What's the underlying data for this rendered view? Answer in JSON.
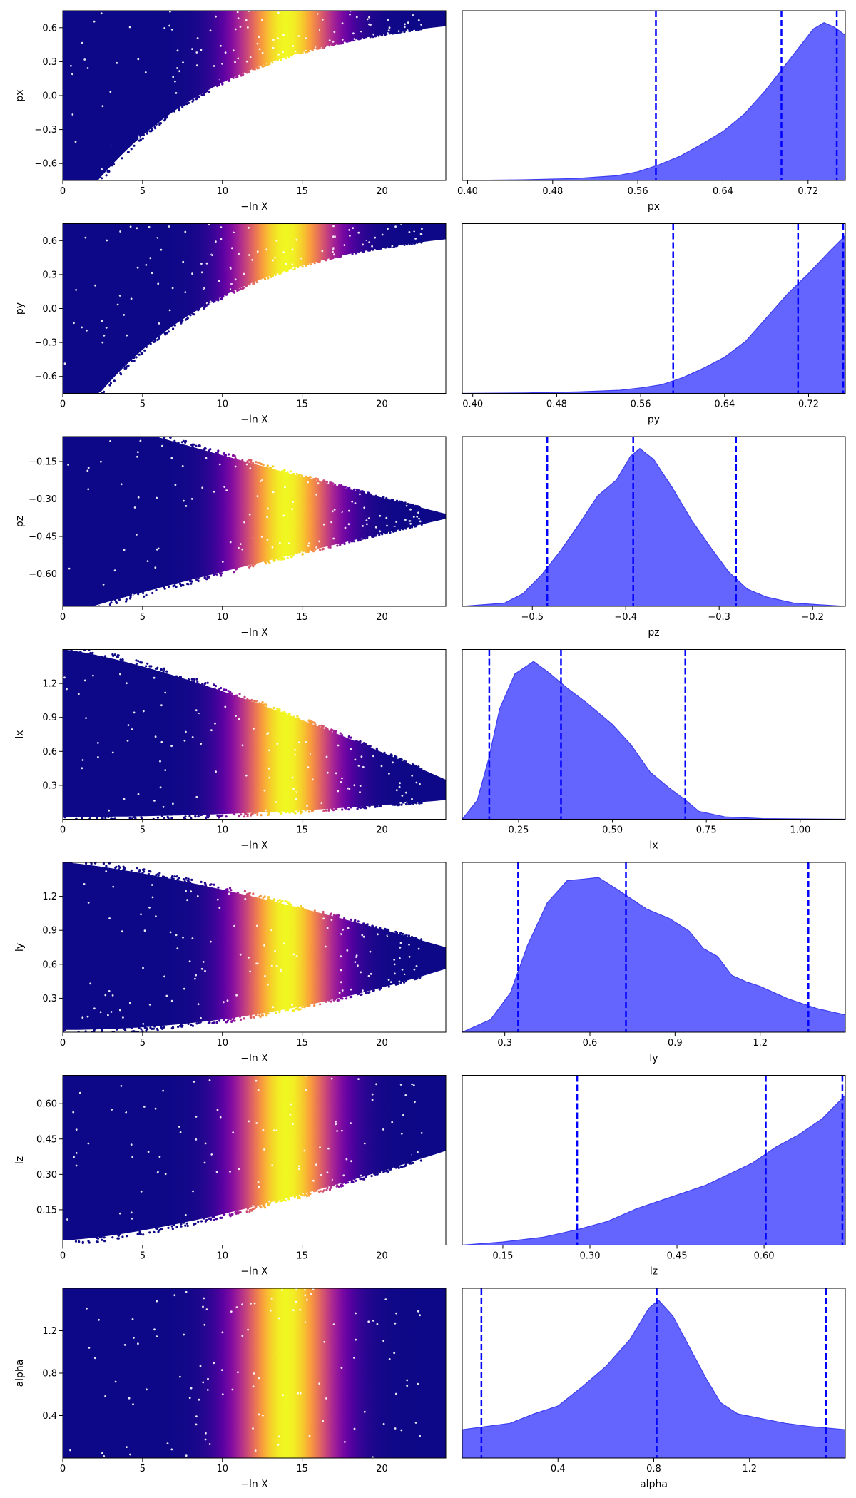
{
  "chart_data": {
    "type": "trace-plot",
    "x_axis_label": "−ln X",
    "trace_x_range": [
      0,
      24
    ],
    "trace_x_ticks": [
      0,
      5,
      10,
      15,
      20
    ],
    "peak_importance_at": 14,
    "colormap": [
      "#0d0887",
      "#6a00a8",
      "#b12a90",
      "#e16462",
      "#fca636",
      "#f0f921"
    ],
    "posterior_fill": "#6464ff",
    "posterior_edge": "#3c3cf0",
    "quantile_color": "#0000ff",
    "parameters": [
      {
        "name": "px",
        "trace_ylim": [
          -0.75,
          0.75
        ],
        "trace_yticks": [
          "-0.6",
          "-0.3",
          "0.0",
          "0.3",
          "0.6"
        ],
        "trace_shape": {
          "type": "lower-bound",
          "low": -0.75,
          "high": 0.75,
          "start": 0.75,
          "floor": -0.75,
          "rise": 2.2,
          "k": 0.11
        },
        "posterior_xlim": [
          0.395,
          0.755
        ],
        "posterior_xticks": [
          "0.40",
          "0.48",
          "0.56",
          "0.64",
          "0.72"
        ],
        "quantiles": [
          0.577,
          0.695,
          0.747
        ],
        "posterior_density": [
          [
            0.395,
            0.0
          ],
          [
            0.45,
            0.004
          ],
          [
            0.5,
            0.012
          ],
          [
            0.54,
            0.03
          ],
          [
            0.56,
            0.055
          ],
          [
            0.58,
            0.1
          ],
          [
            0.6,
            0.155
          ],
          [
            0.62,
            0.23
          ],
          [
            0.64,
            0.31
          ],
          [
            0.66,
            0.42
          ],
          [
            0.68,
            0.57
          ],
          [
            0.695,
            0.7
          ],
          [
            0.71,
            0.83
          ],
          [
            0.725,
            0.96
          ],
          [
            0.735,
            1.0
          ],
          [
            0.745,
            0.97
          ],
          [
            0.755,
            0.92
          ]
        ]
      },
      {
        "name": "py",
        "trace_ylim": [
          -0.75,
          0.75
        ],
        "trace_yticks": [
          "-0.6",
          "-0.3",
          "0.0",
          "0.3",
          "0.6"
        ],
        "trace_shape": {
          "type": "lower-bound",
          "low": -0.75,
          "high": 0.75,
          "start": 0.75,
          "floor": -0.75,
          "rise": 2.3,
          "k": 0.11
        },
        "posterior_xlim": [
          0.39,
          0.755
        ],
        "posterior_xticks": [
          "0.40",
          "0.48",
          "0.56",
          "0.64",
          "0.72"
        ],
        "quantiles": [
          0.591,
          0.71,
          0.753
        ],
        "posterior_density": [
          [
            0.39,
            0.0
          ],
          [
            0.45,
            0.003
          ],
          [
            0.5,
            0.01
          ],
          [
            0.54,
            0.02
          ],
          [
            0.56,
            0.035
          ],
          [
            0.58,
            0.055
          ],
          [
            0.6,
            0.1
          ],
          [
            0.62,
            0.16
          ],
          [
            0.64,
            0.23
          ],
          [
            0.66,
            0.33
          ],
          [
            0.68,
            0.48
          ],
          [
            0.7,
            0.63
          ],
          [
            0.72,
            0.76
          ],
          [
            0.74,
            0.9
          ],
          [
            0.755,
            1.0
          ]
        ]
      },
      {
        "name": "pz",
        "trace_ylim": [
          -0.73,
          -0.05
        ],
        "trace_yticks": [
          "-0.60",
          "-0.45",
          "-0.30",
          "-0.15"
        ],
        "trace_shape": {
          "type": "funnel",
          "low": -0.73,
          "high": -0.05,
          "center": -0.37,
          "halfStart": 0.42,
          "halfEnd": 0.01
        },
        "posterior_xlim": [
          -0.575,
          -0.165
        ],
        "posterior_xticks": [
          "-0.5",
          "-0.4",
          "-0.3",
          "-0.2"
        ],
        "quantiles": [
          -0.484,
          -0.392,
          -0.282
        ],
        "posterior_density": [
          [
            -0.575,
            0.0
          ],
          [
            -0.53,
            0.02
          ],
          [
            -0.51,
            0.08
          ],
          [
            -0.49,
            0.2
          ],
          [
            -0.47,
            0.35
          ],
          [
            -0.45,
            0.52
          ],
          [
            -0.43,
            0.7
          ],
          [
            -0.41,
            0.8
          ],
          [
            -0.395,
            0.95
          ],
          [
            -0.385,
            1.0
          ],
          [
            -0.37,
            0.93
          ],
          [
            -0.35,
            0.75
          ],
          [
            -0.33,
            0.55
          ],
          [
            -0.31,
            0.38
          ],
          [
            -0.29,
            0.22
          ],
          [
            -0.27,
            0.11
          ],
          [
            -0.25,
            0.06
          ],
          [
            -0.22,
            0.02
          ],
          [
            -0.165,
            0.0
          ]
        ]
      },
      {
        "name": "lx",
        "trace_ylim": [
          0.0,
          1.5
        ],
        "trace_yticks": [
          "0.3",
          "0.6",
          "0.9",
          "1.2"
        ],
        "trace_shape": {
          "type": "wedge",
          "low": 0.0,
          "high": 1.5,
          "base": 0.02,
          "topStart": 1.5,
          "topEnd": 0.35,
          "spread": 0.05
        },
        "posterior_xlim": [
          0.1,
          1.12
        ],
        "posterior_xticks": [
          "0.25",
          "0.50",
          "0.75",
          "1.00"
        ],
        "quantiles": [
          0.172,
          0.363,
          0.694
        ],
        "posterior_density": [
          [
            0.1,
            0.0
          ],
          [
            0.14,
            0.12
          ],
          [
            0.17,
            0.38
          ],
          [
            0.2,
            0.7
          ],
          [
            0.24,
            0.92
          ],
          [
            0.29,
            1.0
          ],
          [
            0.33,
            0.93
          ],
          [
            0.38,
            0.83
          ],
          [
            0.43,
            0.74
          ],
          [
            0.5,
            0.6
          ],
          [
            0.55,
            0.47
          ],
          [
            0.6,
            0.3
          ],
          [
            0.65,
            0.2
          ],
          [
            0.69,
            0.13
          ],
          [
            0.73,
            0.05
          ],
          [
            0.8,
            0.015
          ],
          [
            0.9,
            0.004
          ],
          [
            1.12,
            0.0
          ]
        ]
      },
      {
        "name": "ly",
        "trace_ylim": [
          0.0,
          1.5
        ],
        "trace_yticks": [
          "0.3",
          "0.6",
          "0.9",
          "1.2"
        ],
        "trace_shape": {
          "type": "wedge",
          "low": 0.0,
          "high": 1.5,
          "base": 0.02,
          "topStart": 1.5,
          "topEnd": 0.75,
          "spread": 0.18
        },
        "posterior_xlim": [
          0.15,
          1.5
        ],
        "posterior_xticks": [
          "0.3",
          "0.6",
          "0.9",
          "1.2"
        ],
        "quantiles": [
          0.347,
          0.727,
          1.37
        ],
        "posterior_density": [
          [
            0.15,
            0.0
          ],
          [
            0.25,
            0.08
          ],
          [
            0.32,
            0.25
          ],
          [
            0.38,
            0.55
          ],
          [
            0.45,
            0.82
          ],
          [
            0.52,
            0.96
          ],
          [
            0.58,
            0.97
          ],
          [
            0.63,
            0.98
          ],
          [
            0.7,
            0.9
          ],
          [
            0.75,
            0.84
          ],
          [
            0.8,
            0.78
          ],
          [
            0.88,
            0.72
          ],
          [
            0.95,
            0.64
          ],
          [
            1.0,
            0.53
          ],
          [
            1.05,
            0.48
          ],
          [
            1.1,
            0.36
          ],
          [
            1.15,
            0.32
          ],
          [
            1.2,
            0.29
          ],
          [
            1.3,
            0.21
          ],
          [
            1.4,
            0.15
          ],
          [
            1.5,
            0.11
          ]
        ]
      },
      {
        "name": "lz",
        "trace_ylim": [
          0.0,
          0.72
        ],
        "trace_yticks": [
          "0.15",
          "0.30",
          "0.45",
          "0.60"
        ],
        "trace_shape": {
          "type": "wedge",
          "low": 0.0,
          "high": 0.72,
          "base": 0.02,
          "topStart": 0.72,
          "topEnd": 0.72,
          "spread": 0.0,
          "baseRise": 0.38
        },
        "posterior_xlim": [
          0.08,
          0.74
        ],
        "posterior_xticks": [
          "0.15",
          "0.30",
          "0.45",
          "0.60"
        ],
        "quantiles": [
          0.278,
          0.603,
          0.735
        ],
        "posterior_density": [
          [
            0.08,
            0.0
          ],
          [
            0.15,
            0.02
          ],
          [
            0.22,
            0.05
          ],
          [
            0.28,
            0.1
          ],
          [
            0.33,
            0.15
          ],
          [
            0.38,
            0.23
          ],
          [
            0.42,
            0.28
          ],
          [
            0.46,
            0.33
          ],
          [
            0.5,
            0.38
          ],
          [
            0.54,
            0.45
          ],
          [
            0.58,
            0.52
          ],
          [
            0.62,
            0.62
          ],
          [
            0.66,
            0.7
          ],
          [
            0.7,
            0.8
          ],
          [
            0.74,
            0.95
          ]
        ]
      },
      {
        "name": "alpha",
        "trace_ylim": [
          0.0,
          1.6
        ],
        "trace_yticks": [
          "0.4",
          "0.8",
          "1.2"
        ],
        "trace_shape": {
          "type": "wedge",
          "low": 0.0,
          "high": 1.6,
          "base": 0.0,
          "topStart": 1.6,
          "topEnd": 1.6,
          "spread": 0.0
        },
        "posterior_xlim": [
          0.0,
          1.6
        ],
        "posterior_xticks": [
          "0.4",
          "0.8",
          "1.2"
        ],
        "quantiles": [
          0.08,
          0.812,
          1.52
        ],
        "posterior_density": [
          [
            0.0,
            0.18
          ],
          [
            0.1,
            0.2
          ],
          [
            0.2,
            0.22
          ],
          [
            0.3,
            0.28
          ],
          [
            0.4,
            0.33
          ],
          [
            0.5,
            0.45
          ],
          [
            0.6,
            0.58
          ],
          [
            0.7,
            0.75
          ],
          [
            0.78,
            0.95
          ],
          [
            0.82,
            1.0
          ],
          [
            0.88,
            0.9
          ],
          [
            0.95,
            0.7
          ],
          [
            1.02,
            0.5
          ],
          [
            1.08,
            0.35
          ],
          [
            1.15,
            0.28
          ],
          [
            1.25,
            0.25
          ],
          [
            1.35,
            0.22
          ],
          [
            1.45,
            0.2
          ],
          [
            1.6,
            0.18
          ]
        ]
      }
    ]
  }
}
